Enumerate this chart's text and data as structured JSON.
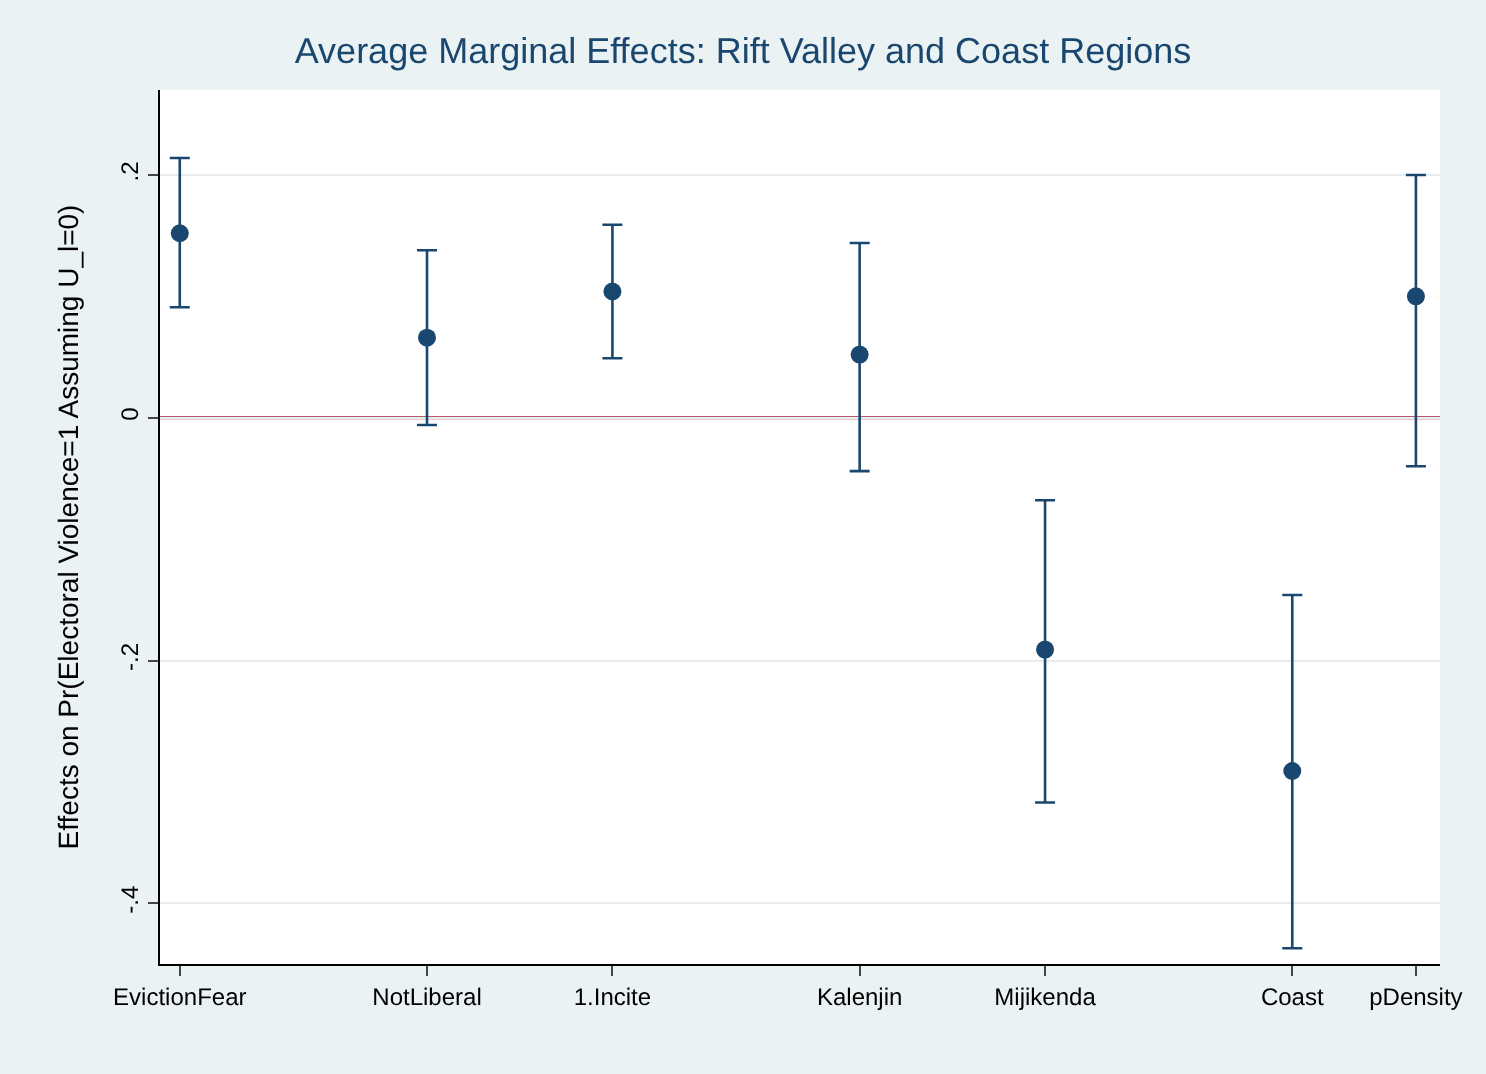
{
  "chart_data": {
    "type": "scatter",
    "title": "Average Marginal Effects: Rift Valley and Coast Regions",
    "ylabel": "Effects on Pr(Electoral Violence=1 Assuming U_l=0)",
    "categories": [
      "EvictionFear",
      null,
      null,
      null,
      "NotLiberal",
      null,
      null,
      "1.Incite",
      null,
      null,
      null,
      "Kalenjin",
      null,
      null,
      "Mijikenda",
      null,
      null,
      null,
      "Coast",
      null,
      "pDensity"
    ],
    "values": [
      0.152,
      null,
      null,
      null,
      0.066,
      null,
      null,
      0.104,
      null,
      null,
      null,
      0.052,
      null,
      null,
      -0.191,
      null,
      null,
      null,
      -0.291,
      null,
      0.1
    ],
    "errors": [
      [
        0.091,
        0.214
      ],
      null,
      null,
      null,
      [
        -0.006,
        0.138
      ],
      null,
      null,
      [
        0.049,
        0.159
      ],
      null,
      null,
      null,
      [
        -0.044,
        0.144
      ],
      null,
      null,
      [
        -0.317,
        -0.068
      ],
      null,
      null,
      null,
      [
        -0.437,
        -0.146
      ],
      null,
      [
        -0.04,
        0.2
      ]
    ],
    "color": "#1a476f",
    "marker": "circle",
    "ylim": [
      -0.45,
      0.27
    ],
    "yticks": [
      {
        "value": -0.4,
        "label": "-.4"
      },
      {
        "value": -0.2,
        "label": "-.2"
      },
      {
        "value": 0,
        "label": "0"
      },
      {
        "value": 0.2,
        "label": ".2"
      }
    ],
    "ref_lines": [
      {
        "axis": "y",
        "value": 0,
        "color": "#a0203c"
      }
    ],
    "grid": "y"
  }
}
